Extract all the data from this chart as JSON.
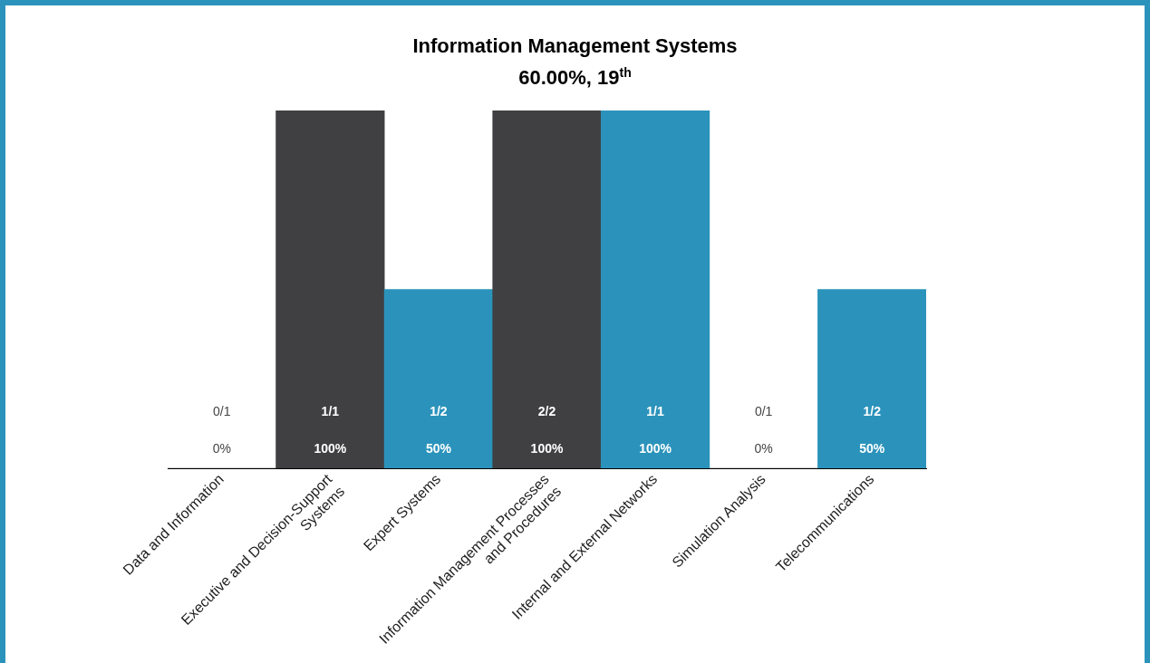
{
  "chart_data": {
    "type": "bar",
    "title": "Information Management Systems",
    "subtitle": "60.00%, 19$^{th}$",
    "categories": [
      "Data and Information",
      "Executive and Decision-Support Systems",
      "Expert Systems",
      "Information Management Processes and Procedures",
      "Internal and External Networks",
      "Simulation Analysis",
      "Telecommunications"
    ],
    "values": [
      0,
      100,
      50,
      100,
      100,
      0,
      50
    ],
    "colors": [
      "#404042",
      "#404042",
      "#2b93bb",
      "#404042",
      "#2b93bb",
      "#404042",
      "#2b93bb"
    ],
    "value_labels": [
      "0%",
      "100%",
      "50%",
      "100%",
      "100%",
      "0%",
      "50%"
    ],
    "annotations": [
      "0/1",
      "1/1",
      "1/2",
      "2/2",
      "1/1",
      "0/1",
      "1/2"
    ],
    "grid": false,
    "legend": false
  }
}
